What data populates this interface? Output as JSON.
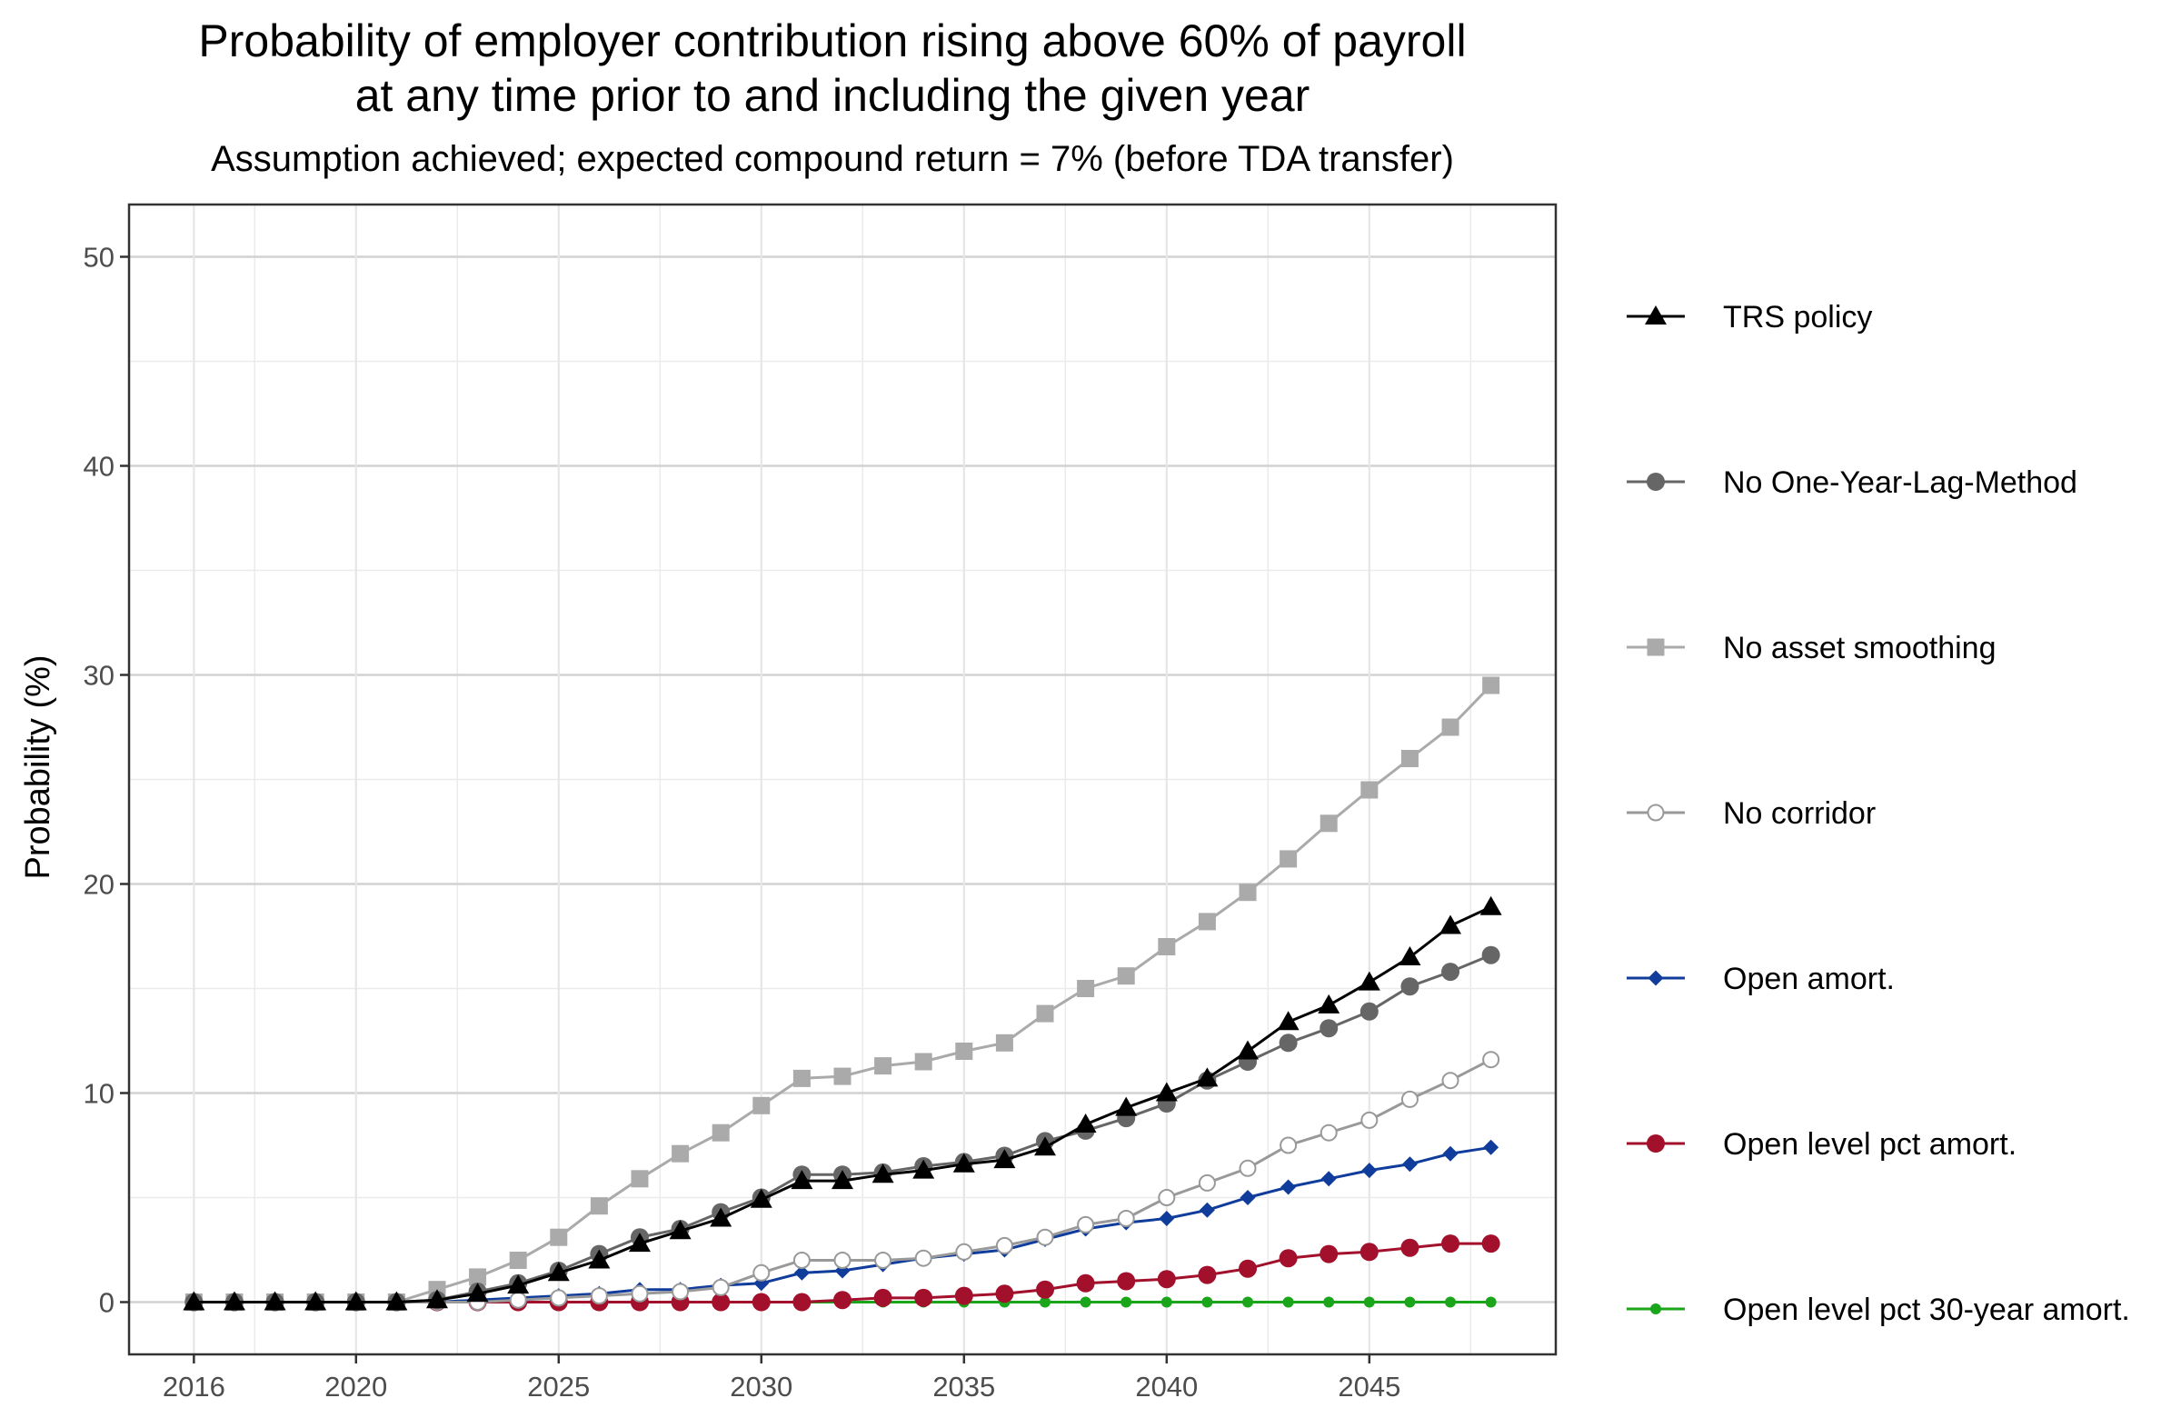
{
  "chart_data": {
    "type": "line",
    "title_line1": "Probability of employer contribution rising above 60% of payroll",
    "title_line2": "at any time prior to and including the given year",
    "subtitle": "Assumption achieved; expected compound return = 7% (before TDA transfer)",
    "xlabel": "",
    "ylabel": "Probability (%)",
    "xlim": [
      2014.4,
      2049.6
    ],
    "ylim": [
      -2.5,
      52.5
    ],
    "x_ticks": [
      2016,
      2020,
      2025,
      2030,
      2035,
      2040,
      2045
    ],
    "y_ticks": [
      0,
      10,
      20,
      30,
      40,
      50
    ],
    "grid": true,
    "legend_position": "right",
    "x": [
      2016,
      2017,
      2018,
      2019,
      2020,
      2021,
      2022,
      2023,
      2024,
      2025,
      2026,
      2027,
      2028,
      2029,
      2030,
      2031,
      2032,
      2033,
      2034,
      2035,
      2036,
      2037,
      2038,
      2039,
      2040,
      2041,
      2042,
      2043,
      2044,
      2045,
      2046,
      2047,
      2048
    ],
    "series": [
      {
        "name": "TRS policy",
        "color": "#000000",
        "marker": "triangle",
        "values": [
          0,
          0,
          0,
          0,
          0,
          0,
          0.1,
          0.4,
          0.8,
          1.4,
          2.0,
          2.8,
          3.4,
          4.0,
          4.9,
          5.8,
          5.8,
          6.1,
          6.3,
          6.6,
          6.8,
          7.4,
          8.5,
          9.3,
          10.0,
          10.7,
          12.0,
          13.4,
          14.2,
          15.3,
          16.5,
          18.0,
          18.9
        ]
      },
      {
        "name": "No One-Year-Lag-Method",
        "color": "#666666",
        "marker": "circle",
        "values": [
          0,
          0,
          0,
          0,
          0,
          0,
          0.1,
          0.5,
          0.9,
          1.5,
          2.3,
          3.1,
          3.5,
          4.3,
          5.0,
          6.1,
          6.1,
          6.2,
          6.5,
          6.7,
          7.0,
          7.7,
          8.2,
          8.8,
          9.5,
          10.6,
          11.5,
          12.4,
          13.1,
          13.9,
          15.1,
          15.8,
          16.6
        ]
      },
      {
        "name": "No asset smoothing",
        "color": "#aaaaaa",
        "marker": "square",
        "values": [
          0,
          0,
          0,
          0,
          0,
          0,
          0.6,
          1.2,
          2.0,
          3.1,
          4.6,
          5.9,
          7.1,
          8.1,
          9.4,
          10.7,
          10.8,
          11.3,
          11.5,
          12.0,
          12.4,
          13.8,
          15.0,
          15.6,
          17.0,
          18.2,
          19.6,
          21.2,
          22.9,
          24.5,
          26.0,
          27.5,
          29.5
        ]
      },
      {
        "name": "No corridor",
        "color": "#999999",
        "marker": "circle-open",
        "values": [
          0,
          0,
          0,
          0,
          0,
          0,
          0,
          0,
          0.1,
          0.2,
          0.3,
          0.4,
          0.5,
          0.7,
          1.4,
          2.0,
          2.0,
          2.0,
          2.1,
          2.4,
          2.7,
          3.1,
          3.7,
          4.0,
          5.0,
          5.7,
          6.4,
          7.5,
          8.1,
          8.7,
          9.7,
          10.6,
          11.6
        ]
      },
      {
        "name": "Open amort.",
        "color": "#103d9b",
        "marker": "diamond",
        "values": [
          0,
          0,
          0,
          0,
          0,
          0,
          0,
          0.1,
          0.2,
          0.3,
          0.4,
          0.6,
          0.6,
          0.8,
          0.9,
          1.4,
          1.5,
          1.8,
          2.1,
          2.3,
          2.5,
          3.0,
          3.5,
          3.8,
          4.0,
          4.4,
          5.0,
          5.5,
          5.9,
          6.3,
          6.6,
          7.1,
          7.4
        ]
      },
      {
        "name": "Open level pct amort.",
        "color": "#a2102c",
        "marker": "circle",
        "values": [
          0,
          0,
          0,
          0,
          0,
          0,
          0,
          0,
          0,
          0,
          0,
          0,
          0,
          0,
          0,
          0,
          0.1,
          0.2,
          0.2,
          0.3,
          0.4,
          0.6,
          0.9,
          1.0,
          1.1,
          1.3,
          1.6,
          2.1,
          2.3,
          2.4,
          2.6,
          2.8,
          2.8
        ]
      },
      {
        "name": "Open level pct 30-year amort.",
        "color": "#1aa51a",
        "marker": "circle-small",
        "values": [
          0,
          0,
          0,
          0,
          0,
          0,
          0,
          0,
          0,
          0,
          0,
          0,
          0,
          0,
          0,
          0,
          0,
          0,
          0,
          0,
          0,
          0,
          0,
          0,
          0,
          0,
          0,
          0,
          0,
          0,
          0,
          0,
          0
        ]
      }
    ]
  }
}
